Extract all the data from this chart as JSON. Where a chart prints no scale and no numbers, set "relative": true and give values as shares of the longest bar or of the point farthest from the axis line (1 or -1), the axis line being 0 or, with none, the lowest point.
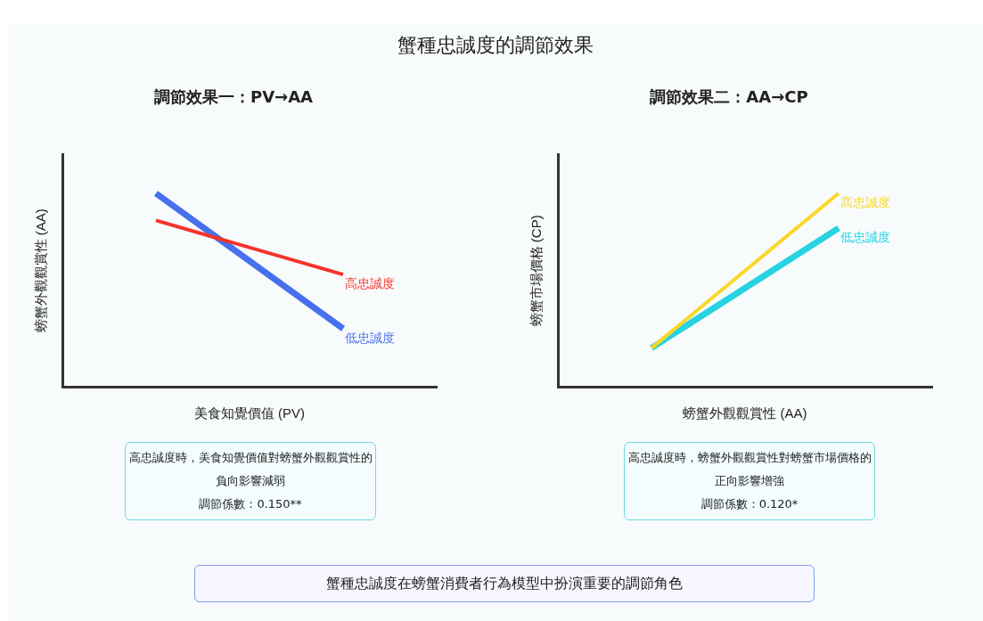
{
  "chart_data": [
    {
      "type": "other",
      "title": "蟹種忠誠度的調節效果",
      "annotations": [
        "蟹種忠誠度在螃蟹消費者行為模型中扮演重要的調節角色"
      ]
    },
    {
      "type": "line",
      "title": "調節效果一：PV→AA",
      "xlabel": "美食知覺價值 (PV)",
      "ylabel": "螃蟹外觀觀賞性 (AA)",
      "relative": true,
      "legend": false,
      "marker": "none",
      "categories": [
        null,
        null
      ],
      "series": [
        {
          "name": "高忠誠度",
          "color": "#f5332a",
          "values": [
            0.86,
            0.58
          ]
        },
        {
          "name": "低忠誠度",
          "color": "#4670ec",
          "values": [
            1,
            0.3
          ]
        }
      ],
      "annotations": [
        "高忠誠度時，美食知覺價值對螃蟹外觀觀賞性的負向影響減弱",
        "調節係數：0.150**"
      ]
    },
    {
      "type": "line",
      "title": "調節效果二：AA→CP",
      "xlabel": "螃蟹外觀觀賞性 (AA)",
      "ylabel": "螃蟹市場價格 (CP)",
      "relative": true,
      "legend": false,
      "marker": "none",
      "categories": [
        null,
        null
      ],
      "series": [
        {
          "name": "高忠誠度",
          "color": "#fad726",
          "values": [
            0.2,
            1
          ]
        },
        {
          "name": "低忠誠度",
          "color": "#27d3e0",
          "values": [
            0.2,
            0.82
          ]
        }
      ],
      "annotations": [
        "高忠誠度時，螃蟹外觀觀賞性對螃蟹市場價格的正向影響增強",
        "調節係數：0.120*"
      ]
    }
  ]
}
